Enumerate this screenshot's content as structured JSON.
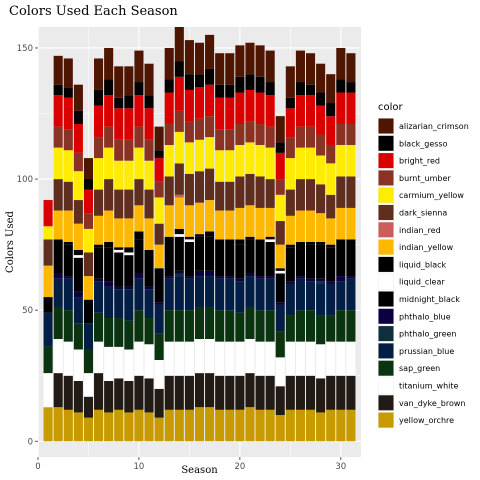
{
  "chart_data": {
    "type": "bar",
    "stacked": true,
    "title": "Colors Used Each Season",
    "xlabel": "Season",
    "ylabel": "Colors Used",
    "xlim": [
      0,
      32
    ],
    "ylim": [
      -6,
      158
    ],
    "xticks": [
      0,
      10,
      20,
      30
    ],
    "yticks": [
      0,
      50,
      100,
      150
    ],
    "grid": true,
    "legend": {
      "title": "color",
      "position": "right"
    },
    "x": [
      1,
      2,
      3,
      4,
      5,
      6,
      7,
      8,
      9,
      10,
      11,
      12,
      13,
      14,
      15,
      16,
      17,
      18,
      19,
      20,
      21,
      22,
      23,
      24,
      25,
      26,
      27,
      28,
      29,
      30,
      31
    ],
    "series": [
      {
        "name": "yellow_orchre",
        "color": "#C79B00",
        "values": [
          13,
          13,
          12,
          11,
          9,
          12,
          11,
          12,
          11,
          12,
          11,
          9,
          12,
          12,
          12,
          13,
          13,
          12,
          12,
          12,
          13,
          12,
          12,
          10,
          12,
          12,
          12,
          11,
          12,
          12,
          12
        ]
      },
      {
        "name": "van_dyke_brown",
        "color": "#221B15",
        "values": [
          0,
          13,
          13,
          12,
          8,
          14,
          12,
          12,
          12,
          13,
          13,
          11,
          13,
          13,
          13,
          13,
          13,
          13,
          13,
          13,
          13,
          13,
          13,
          11,
          13,
          13,
          13,
          13,
          13,
          13,
          13
        ]
      },
      {
        "name": "titanium_white",
        "color": "#FFFFFF",
        "values": [
          13,
          13,
          13,
          12,
          9,
          12,
          13,
          12,
          12,
          13,
          13,
          11,
          13,
          13,
          13,
          13,
          13,
          13,
          13,
          13,
          13,
          13,
          13,
          11,
          13,
          13,
          13,
          13,
          13,
          13,
          13
        ]
      },
      {
        "name": "sap_green",
        "color": "#0A3410",
        "values": [
          10,
          12,
          12,
          10,
          9,
          11,
          11,
          11,
          11,
          12,
          10,
          10,
          12,
          12,
          12,
          12,
          12,
          12,
          12,
          11,
          12,
          12,
          12,
          10,
          10,
          12,
          12,
          11,
          10,
          12,
          12
        ]
      },
      {
        "name": "prussian_blue",
        "color": "#021E44",
        "values": [
          13,
          11,
          12,
          10,
          10,
          12,
          12,
          11,
          12,
          12,
          11,
          11,
          12,
          13,
          12,
          12,
          12,
          12,
          12,
          12,
          12,
          12,
          12,
          10,
          12,
          12,
          11,
          12,
          12,
          11,
          12
        ]
      },
      {
        "name": "phthalo_green",
        "color": "#102E3C",
        "values": [
          0,
          0,
          0,
          0,
          0,
          0,
          0,
          0,
          0,
          0,
          0,
          0,
          0,
          1,
          0,
          0,
          0,
          0,
          0,
          0,
          0,
          0,
          0,
          0,
          0,
          0,
          0,
          1,
          0,
          0,
          0
        ]
      },
      {
        "name": "phthalo_blue",
        "color": "#0C0040",
        "values": [
          0,
          2,
          1,
          2,
          0,
          1,
          2,
          1,
          1,
          2,
          1,
          1,
          1,
          1,
          1,
          2,
          2,
          1,
          1,
          1,
          1,
          1,
          1,
          1,
          1,
          1,
          1,
          1,
          1,
          2,
          1
        ]
      },
      {
        "name": "midnight_black",
        "color": "#000000",
        "values": [
          6,
          13,
          12,
          13,
          9,
          12,
          13,
          13,
          12,
          13,
          13,
          11,
          13,
          13,
          13,
          13,
          13,
          13,
          13,
          13,
          13,
          13,
          13,
          11,
          13,
          13,
          13,
          13,
          13,
          13,
          13
        ]
      },
      {
        "name": "liquid_clear",
        "color": "#FFFFFF",
        "values": [
          0,
          0,
          0,
          1,
          0,
          0,
          0,
          1,
          1,
          0,
          0,
          0,
          0,
          1,
          1,
          0,
          0,
          0,
          0,
          0,
          0,
          0,
          1,
          1,
          0,
          0,
          0,
          0,
          0,
          0,
          0
        ]
      },
      {
        "name": "liquid_black",
        "color": "#000000",
        "values": [
          0,
          0,
          1,
          2,
          0,
          1,
          2,
          1,
          2,
          3,
          1,
          2,
          2,
          2,
          1,
          1,
          2,
          1,
          1,
          2,
          1,
          1,
          1,
          1,
          1,
          0,
          1,
          1,
          1,
          1,
          1
        ]
      },
      {
        "name": "indian_yellow",
        "color": "#FFB800",
        "values": [
          12,
          11,
          12,
          10,
          9,
          11,
          12,
          11,
          11,
          10,
          12,
          9,
          12,
          12,
          12,
          12,
          12,
          11,
          11,
          12,
          12,
          12,
          11,
          9,
          11,
          12,
          12,
          11,
          10,
          12,
          12
        ]
      },
      {
        "name": "indian_red",
        "color": "#CD5C5C",
        "values": [
          0,
          0,
          0,
          0,
          0,
          0,
          0,
          0,
          0,
          0,
          0,
          0,
          0,
          1,
          0,
          0,
          0,
          0,
          0,
          0,
          0,
          0,
          0,
          0,
          0,
          0,
          0,
          0,
          0,
          0,
          0
        ]
      },
      {
        "name": "dark_sienna",
        "color": "#5F2E1F",
        "values": [
          10,
          12,
          11,
          9,
          9,
          10,
          12,
          11,
          11,
          10,
          11,
          8,
          11,
          12,
          12,
          12,
          12,
          11,
          11,
          12,
          12,
          12,
          11,
          9,
          10,
          12,
          12,
          11,
          9,
          12,
          12
        ]
      },
      {
        "name": "carmium_yellow",
        "color": "#FFEC00",
        "values": [
          5,
          12,
          12,
          11,
          9,
          12,
          12,
          11,
          11,
          12,
          11,
          10,
          12,
          12,
          12,
          12,
          12,
          12,
          12,
          12,
          12,
          12,
          12,
          10,
          12,
          12,
          12,
          11,
          12,
          12,
          12
        ]
      },
      {
        "name": "burnt_umber",
        "color": "#8A3324",
        "values": [
          0,
          8,
          8,
          7,
          6,
          8,
          8,
          8,
          8,
          8,
          8,
          6,
          8,
          8,
          8,
          8,
          8,
          8,
          8,
          8,
          8,
          8,
          8,
          6,
          8,
          8,
          8,
          8,
          7,
          8,
          8
        ]
      },
      {
        "name": "bright_red",
        "color": "#DB0000",
        "values": [
          10,
          12,
          12,
          11,
          9,
          12,
          12,
          12,
          12,
          12,
          12,
          9,
          12,
          13,
          12,
          12,
          12,
          12,
          12,
          12,
          12,
          12,
          12,
          10,
          11,
          12,
          12,
          11,
          11,
          12,
          12
        ]
      },
      {
        "name": "black_gesso",
        "color": "#000000",
        "values": [
          0,
          4,
          4,
          5,
          4,
          6,
          6,
          4,
          5,
          5,
          5,
          3,
          5,
          6,
          6,
          5,
          6,
          5,
          5,
          6,
          6,
          6,
          5,
          4,
          4,
          5,
          4,
          5,
          5,
          5,
          4
        ]
      },
      {
        "name": "alizarian_crimson",
        "color": "#4E1500",
        "values": [
          0,
          11,
          11,
          10,
          8,
          12,
          12,
          12,
          11,
          12,
          12,
          9,
          12,
          13,
          13,
          12,
          13,
          12,
          12,
          12,
          12,
          12,
          12,
          10,
          12,
          12,
          12,
          11,
          11,
          12,
          11
        ]
      }
    ]
  }
}
